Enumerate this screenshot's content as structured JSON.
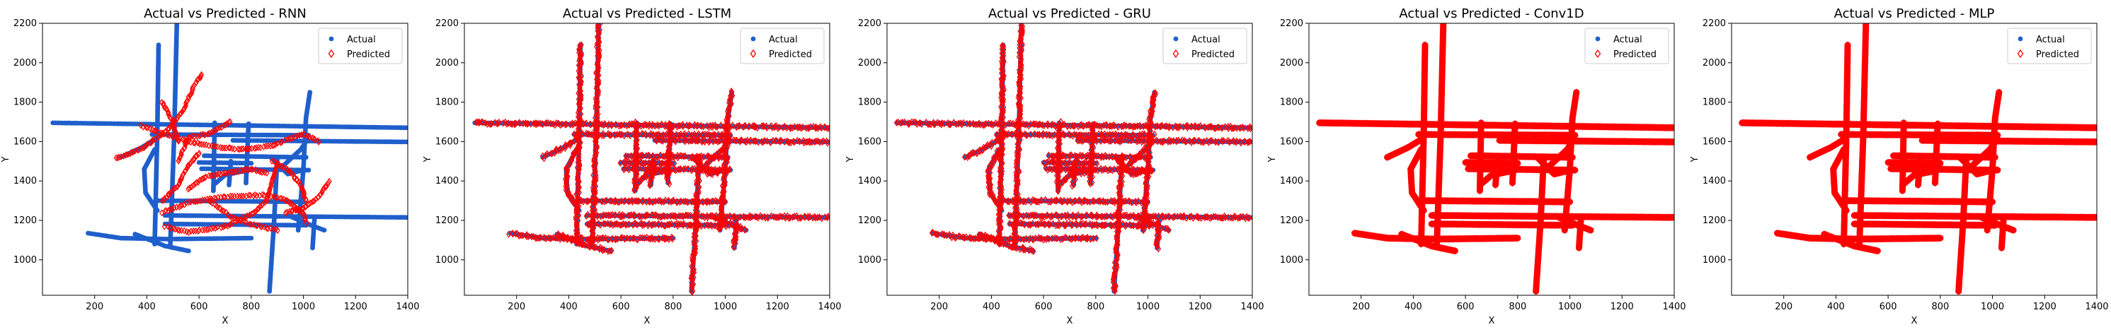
{
  "chart_data": [
    {
      "type": "scatter",
      "title": "Actual vs Predicted - RNN",
      "xlabel": "X",
      "ylabel": "Y",
      "xlim": [
        0,
        1400
      ],
      "ylim": [
        820,
        2200
      ],
      "xticks": [
        200,
        400,
        600,
        800,
        1000,
        1200,
        1400
      ],
      "yticks": [
        1000,
        1200,
        1400,
        1600,
        1800,
        2000,
        2200
      ],
      "legend_position": "top-right",
      "series": [
        {
          "name": "Actual",
          "marker": "dot",
          "color": "#1f5fcc"
        },
        {
          "name": "Predicted",
          "marker": "diamond-open",
          "color": "#ff0000"
        }
      ]
    },
    {
      "type": "scatter",
      "title": "Actual vs Predicted - LSTM",
      "xlabel": "X",
      "ylabel": "Y",
      "xlim": [
        0,
        1400
      ],
      "ylim": [
        820,
        2200
      ],
      "xticks": [
        200,
        400,
        600,
        800,
        1000,
        1200,
        1400
      ],
      "yticks": [
        1000,
        1200,
        1400,
        1600,
        1800,
        2000,
        2200
      ],
      "legend_position": "top-right",
      "series": [
        {
          "name": "Actual",
          "marker": "dot",
          "color": "#1f5fcc"
        },
        {
          "name": "Predicted",
          "marker": "diamond-open",
          "color": "#ff0000"
        }
      ]
    },
    {
      "type": "scatter",
      "title": "Actual vs Predicted - GRU",
      "xlabel": "X",
      "ylabel": "Y",
      "xlim": [
        0,
        1400
      ],
      "ylim": [
        820,
        2200
      ],
      "xticks": [
        200,
        400,
        600,
        800,
        1000,
        1200,
        1400
      ],
      "yticks": [
        1000,
        1200,
        1400,
        1600,
        1800,
        2000,
        2200
      ],
      "legend_position": "top-right",
      "series": [
        {
          "name": "Actual",
          "marker": "dot",
          "color": "#1f5fcc"
        },
        {
          "name": "Predicted",
          "marker": "diamond-open",
          "color": "#ff0000"
        }
      ]
    },
    {
      "type": "scatter",
      "title": "Actual vs Predicted - Conv1D",
      "xlabel": "X",
      "ylabel": "Y",
      "xlim": [
        0,
        1400
      ],
      "ylim": [
        820,
        2200
      ],
      "xticks": [
        200,
        400,
        600,
        800,
        1000,
        1200,
        1400
      ],
      "yticks": [
        1000,
        1200,
        1400,
        1600,
        1800,
        2000,
        2200
      ],
      "legend_position": "top-right",
      "series": [
        {
          "name": "Actual",
          "marker": "dot",
          "color": "#1f5fcc"
        },
        {
          "name": "Predicted",
          "marker": "diamond-open",
          "color": "#ff0000"
        }
      ]
    },
    {
      "type": "scatter",
      "title": "Actual vs Predicted - MLP",
      "xlabel": "X",
      "ylabel": "Y",
      "xlim": [
        0,
        1400
      ],
      "ylim": [
        820,
        2200
      ],
      "xticks": [
        200,
        400,
        600,
        800,
        1000,
        1200,
        1400
      ],
      "yticks": [
        1000,
        1200,
        1400,
        1600,
        1800,
        2000,
        2200
      ],
      "legend_position": "top-right",
      "series": [
        {
          "name": "Actual",
          "marker": "dot",
          "color": "#1f5fcc"
        },
        {
          "name": "Predicted",
          "marker": "diamond-open",
          "color": "#ff0000"
        }
      ]
    }
  ],
  "trajectory": {
    "tracks": [
      {
        "id": "h1690",
        "points": [
          [
            40,
            1695
          ],
          [
            1400,
            1670
          ]
        ]
      },
      {
        "id": "h1635",
        "points": [
          [
            420,
            1636
          ],
          [
            1020,
            1632
          ]
        ]
      },
      {
        "id": "h1600",
        "points": [
          [
            730,
            1606
          ],
          [
            1400,
            1598
          ]
        ]
      },
      {
        "id": "h1525",
        "points": [
          [
            620,
            1528
          ],
          [
            1010,
            1520
          ]
        ]
      },
      {
        "id": "h1490",
        "points": [
          [
            600,
            1494
          ],
          [
            800,
            1490
          ]
        ]
      },
      {
        "id": "h1460",
        "points": [
          [
            610,
            1462
          ],
          [
            1020,
            1455
          ]
        ]
      },
      {
        "id": "h1300",
        "points": [
          [
            445,
            1300
          ],
          [
            1000,
            1294
          ]
        ]
      },
      {
        "id": "h1225",
        "points": [
          [
            470,
            1225
          ],
          [
            1400,
            1215
          ]
        ]
      },
      {
        "id": "h1180",
        "points": [
          [
            470,
            1182
          ],
          [
            1010,
            1175
          ]
        ]
      },
      {
        "id": "h1120",
        "points": [
          [
            175,
            1135
          ],
          [
            300,
            1110
          ],
          [
            480,
            1105
          ],
          [
            800,
            1110
          ]
        ]
      },
      {
        "id": "v430",
        "points": [
          [
            430,
            1080
          ],
          [
            440,
            1640
          ],
          [
            445,
            2090
          ]
        ]
      },
      {
        "id": "v505",
        "points": [
          [
            490,
            1080
          ],
          [
            505,
            1640
          ],
          [
            515,
            2200
          ]
        ]
      },
      {
        "id": "v660",
        "points": [
          [
            655,
            1350
          ],
          [
            660,
            1695
          ]
        ]
      },
      {
        "id": "v720",
        "points": [
          [
            715,
            1380
          ],
          [
            722,
            1500
          ]
        ]
      },
      {
        "id": "v780",
        "points": [
          [
            780,
            1390
          ],
          [
            790,
            1690
          ]
        ]
      },
      {
        "id": "v885",
        "points": [
          [
            870,
            840
          ],
          [
            888,
            1200
          ],
          [
            900,
            1520
          ]
        ]
      },
      {
        "id": "v1010",
        "points": [
          [
            980,
            1150
          ],
          [
            1000,
            1460
          ],
          [
            1010,
            1720
          ],
          [
            1025,
            1850
          ]
        ]
      },
      {
        "id": "v1050",
        "points": [
          [
            1035,
            1060
          ],
          [
            1042,
            1200
          ]
        ]
      },
      {
        "id": "diag1",
        "points": [
          [
            355,
            1130
          ],
          [
            470,
            1070
          ],
          [
            560,
            1045
          ]
        ]
      },
      {
        "id": "diag2",
        "points": [
          [
            950,
            1220
          ],
          [
            1030,
            1175
          ],
          [
            1080,
            1150
          ]
        ]
      },
      {
        "id": "curve1",
        "points": [
          [
            430,
            1560
          ],
          [
            390,
            1460
          ],
          [
            395,
            1340
          ],
          [
            440,
            1250
          ]
        ]
      },
      {
        "id": "curve2",
        "points": [
          [
            660,
            1385
          ],
          [
            700,
            1430
          ],
          [
            790,
            1455
          ]
        ]
      },
      {
        "id": "curve3",
        "points": [
          [
            875,
            1520
          ],
          [
            940,
            1435
          ],
          [
            1000,
            1455
          ]
        ]
      },
      {
        "id": "curve4",
        "points": [
          [
            300,
            1520
          ],
          [
            380,
            1570
          ],
          [
            430,
            1610
          ]
        ]
      },
      {
        "id": "curve5",
        "points": [
          [
            925,
            1480
          ],
          [
            990,
            1560
          ],
          [
            1010,
            1600
          ]
        ]
      }
    ],
    "rnn_tracks": [
      {
        "id": "r1",
        "points": [
          [
            380,
            1680
          ],
          [
            460,
            1640
          ],
          [
            560,
            1600
          ],
          [
            680,
            1570
          ],
          [
            780,
            1560
          ]
        ]
      },
      {
        "id": "r2",
        "points": [
          [
            280,
            1515
          ],
          [
            380,
            1560
          ],
          [
            480,
            1660
          ],
          [
            540,
            1760
          ],
          [
            580,
            1880
          ],
          [
            610,
            1940
          ]
        ]
      },
      {
        "id": "r3",
        "points": [
          [
            460,
            1240
          ],
          [
            560,
            1290
          ],
          [
            700,
            1320
          ],
          [
            860,
            1330
          ],
          [
            940,
            1300
          ],
          [
            1000,
            1230
          ],
          [
            1010,
            1190
          ]
        ]
      },
      {
        "id": "r4",
        "points": [
          [
            470,
            1170
          ],
          [
            560,
            1140
          ],
          [
            700,
            1170
          ],
          [
            800,
            1230
          ],
          [
            860,
            1300
          ],
          [
            880,
            1400
          ],
          [
            900,
            1480
          ]
        ]
      },
      {
        "id": "r5",
        "points": [
          [
            560,
            1360
          ],
          [
            620,
            1420
          ],
          [
            700,
            1440
          ],
          [
            800,
            1460
          ],
          [
            860,
            1440
          ]
        ]
      },
      {
        "id": "r6",
        "points": [
          [
            880,
            1500
          ],
          [
            940,
            1460
          ],
          [
            990,
            1380
          ],
          [
            1010,
            1300
          ]
        ]
      },
      {
        "id": "r7",
        "points": [
          [
            460,
            1300
          ],
          [
            520,
            1380
          ],
          [
            560,
            1480
          ],
          [
            600,
            1540
          ]
        ]
      },
      {
        "id": "r8",
        "points": [
          [
            930,
            1240
          ],
          [
            1000,
            1260
          ],
          [
            1060,
            1320
          ],
          [
            1100,
            1400
          ]
        ]
      },
      {
        "id": "r9",
        "points": [
          [
            460,
            1800
          ],
          [
            500,
            1700
          ],
          [
            520,
            1600
          ]
        ]
      },
      {
        "id": "r10",
        "points": [
          [
            780,
            1560
          ],
          [
            880,
            1580
          ],
          [
            1000,
            1640
          ],
          [
            1060,
            1600
          ]
        ]
      },
      {
        "id": "r11",
        "points": [
          [
            640,
            1300
          ],
          [
            720,
            1220
          ],
          [
            800,
            1180
          ],
          [
            900,
            1150
          ]
        ]
      },
      {
        "id": "r12",
        "points": [
          [
            520,
            1500
          ],
          [
            560,
            1620
          ],
          [
            640,
            1640
          ],
          [
            720,
            1700
          ]
        ]
      }
    ]
  }
}
